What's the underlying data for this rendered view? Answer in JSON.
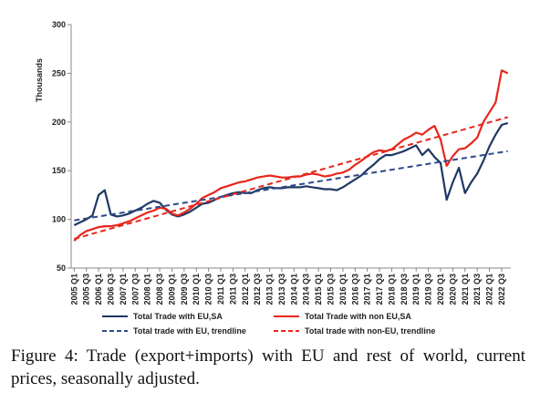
{
  "chart_data": {
    "type": "line",
    "title": "",
    "ylabel": "Thousands",
    "xlabel": "",
    "ylim": [
      50,
      300
    ],
    "yticks": [
      50,
      100,
      150,
      200,
      250,
      300
    ],
    "grid": false,
    "legend_position": "bottom",
    "x": [
      "2005 Q1",
      "2005 Q2",
      "2005 Q3",
      "2005 Q4",
      "2006 Q1",
      "2006 Q2",
      "2006 Q3",
      "2006 Q4",
      "2007 Q1",
      "2007 Q2",
      "2007 Q3",
      "2007 Q4",
      "2008 Q1",
      "2008 Q2",
      "2008 Q3",
      "2008 Q4",
      "2009 Q1",
      "2009 Q2",
      "2009 Q3",
      "2009 Q4",
      "2010 Q1",
      "2010 Q2",
      "2010 Q3",
      "2010 Q4",
      "2011 Q1",
      "2011 Q2",
      "2011 Q3",
      "2011 Q4",
      "2012 Q1",
      "2012 Q2",
      "2012 Q3",
      "2012 Q4",
      "2013 Q1",
      "2013 Q2",
      "2013 Q3",
      "2013 Q4",
      "2014 Q1",
      "2014 Q2",
      "2014 Q3",
      "2014 Q4",
      "2015 Q1",
      "2015 Q2",
      "2015 Q3",
      "2015 Q4",
      "2016 Q1",
      "2016 Q2",
      "2016 Q3",
      "2016 Q4",
      "2017 Q1",
      "2017 Q2",
      "2017 Q3",
      "2017 Q4",
      "2018 Q1",
      "2018 Q2",
      "2018 Q3",
      "2018 Q4",
      "2019 Q1",
      "2019 Q2",
      "2019 Q3",
      "2019 Q4",
      "2020 Q1",
      "2020 Q2",
      "2020 Q3",
      "2020 Q4",
      "2021 Q1",
      "2021 Q2",
      "2021 Q3",
      "2021 Q4",
      "2022 Q1",
      "2022 Q2",
      "2022 Q3",
      "2022 Q4"
    ],
    "x_tick_labels": [
      "2005 Q1",
      "2005 Q3",
      "2006 Q1",
      "2006 Q3",
      "2007 Q1",
      "2007 Q3",
      "2008 Q1",
      "2008 Q3",
      "2009 Q1",
      "2009 Q3",
      "2010 Q1",
      "2010 Q3",
      "2011 Q1",
      "2011 Q3",
      "2012 Q1",
      "2012 Q3",
      "2013 Q1",
      "2013 Q3",
      "2014 Q1",
      "2014 Q3",
      "2015 Q1",
      "2015 Q3",
      "2016 Q1",
      "2016 Q3",
      "2017 Q1",
      "2017 Q3",
      "2018 Q1",
      "2018 Q3",
      "2019 Q1",
      "2019 Q3",
      "2020 Q1",
      "2020 Q3",
      "2021 Q1",
      "2021 Q3",
      "2022 Q1",
      "2022 Q3"
    ],
    "series": [
      {
        "name": "Total Trade with EU,SA",
        "color": "#1f3864",
        "style": "solid",
        "values": [
          94,
          97,
          100,
          104,
          125,
          130,
          105,
          103,
          104,
          106,
          109,
          112,
          116,
          119,
          117,
          110,
          105,
          103,
          105,
          108,
          112,
          116,
          117,
          120,
          123,
          125,
          127,
          128,
          127,
          127,
          130,
          132,
          133,
          132,
          132,
          133,
          133,
          133,
          134,
          133,
          132,
          131,
          131,
          130,
          133,
          137,
          141,
          145,
          151,
          156,
          162,
          166,
          166,
          168,
          170,
          173,
          176,
          166,
          172,
          164,
          158,
          120,
          138,
          153,
          127,
          138,
          147,
          160,
          175,
          187,
          197,
          199
        ]
      },
      {
        "name": "Total Trade with non EU,SA",
        "color": "#e8261c",
        "style": "solid",
        "values": [
          78,
          84,
          88,
          90,
          92,
          93,
          93,
          94,
          96,
          98,
          101,
          104,
          107,
          109,
          112,
          111,
          106,
          104,
          107,
          111,
          116,
          122,
          125,
          128,
          132,
          134,
          136,
          138,
          139,
          141,
          143,
          144,
          145,
          144,
          143,
          143,
          144,
          144,
          146,
          147,
          146,
          144,
          145,
          147,
          148,
          151,
          156,
          160,
          165,
          169,
          171,
          170,
          172,
          177,
          182,
          185,
          189,
          187,
          192,
          196,
          182,
          155,
          165,
          172,
          173,
          178,
          184,
          200,
          210,
          220,
          253,
          250
        ]
      },
      {
        "name": "Total trade with EU, trendline",
        "color": "#2e4a8a",
        "style": "dashed",
        "values_start_end": [
          99,
          170
        ]
      },
      {
        "name": "Total trade with non-EU, trendline",
        "color": "#e8261c",
        "style": "dashed",
        "values_start_end": [
          80,
          205
        ]
      }
    ]
  },
  "caption": "Figure 4: Trade (export+imports) with EU and rest of world, current prices, seasonally adjusted."
}
